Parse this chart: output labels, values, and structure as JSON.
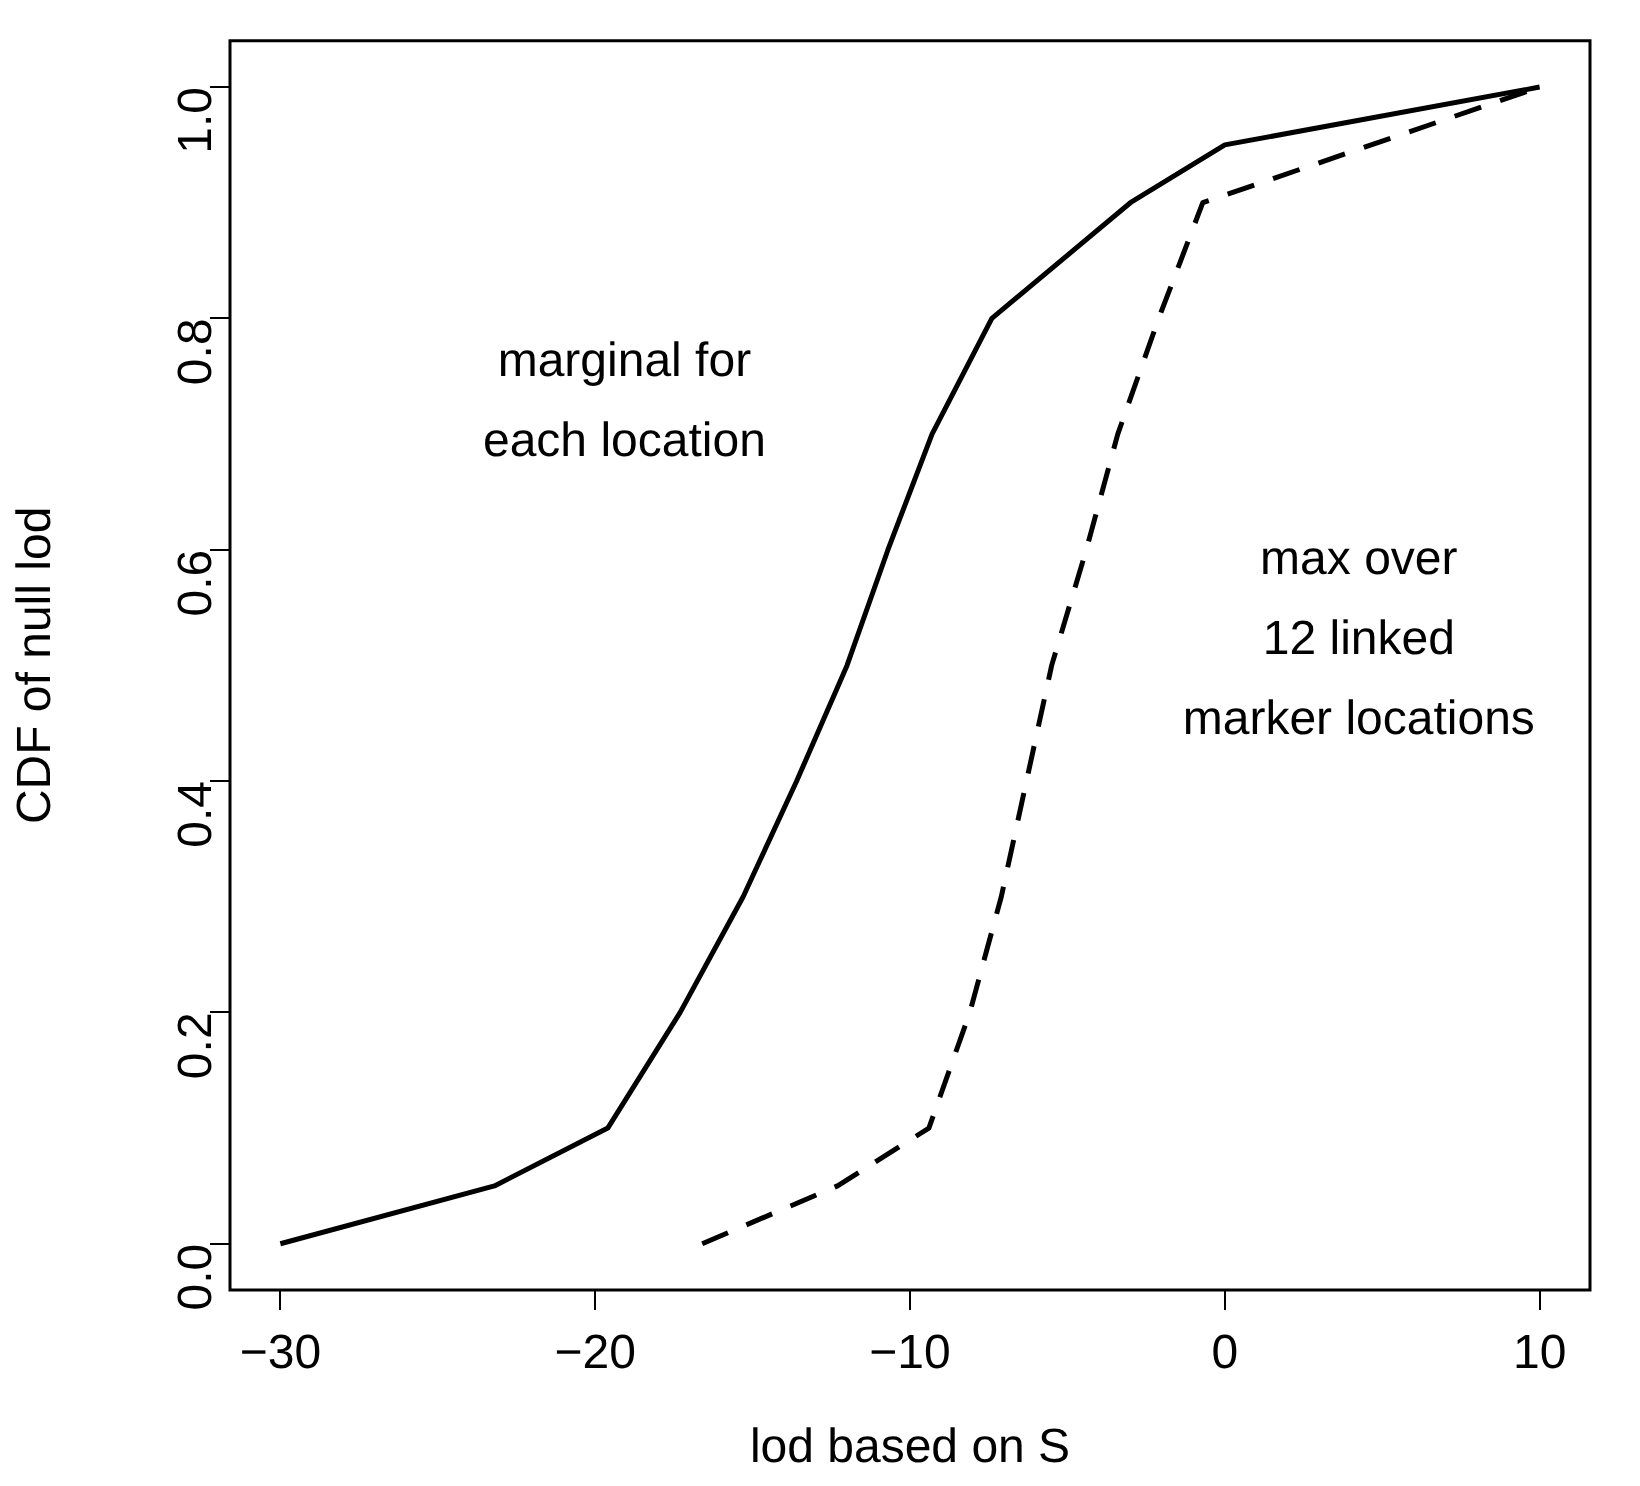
{
  "chart_data": {
    "type": "line",
    "xlabel": "lod based on S",
    "ylabel": "CDF of null lod",
    "xlim": [
      -31.6,
      11.6
    ],
    "xticks": [
      {
        "value": -30,
        "label": "−30"
      },
      {
        "value": -20,
        "label": "−20"
      },
      {
        "value": -10,
        "label": "−10"
      },
      0,
      10
    ],
    "ylim": [
      -0.04,
      1.04
    ],
    "yticks": [
      {
        "value": 0,
        "label": "0.0"
      },
      0.2,
      0.4,
      0.6,
      0.8,
      {
        "value": 1,
        "label": "1.0"
      }
    ],
    "grid": false,
    "legend": false,
    "marker": "none",
    "series": [
      {
        "color": "#000000",
        "line_style": "solid",
        "x": [
          -30,
          -23.2,
          -19.6,
          -17.3,
          -15.3,
          -13.6,
          -12,
          -10.7,
          -9.3,
          -7.4,
          -3,
          0,
          10
        ],
        "values": [
          0,
          0.05,
          0.1,
          0.2,
          0.3,
          0.4,
          0.5,
          0.6,
          0.7,
          0.8,
          0.9,
          0.95,
          1
        ]
      },
      {
        "color": "#000000",
        "line_style": "dashed",
        "x": [
          -16.6,
          -12.3,
          -9.4,
          -8.1,
          -7.1,
          -6.3,
          -5.5,
          -4.4,
          -3.4,
          -2.1,
          -0.7,
          10
        ],
        "values": [
          0,
          0.05,
          0.1,
          0.2,
          0.3,
          0.4,
          0.5,
          0.6,
          0.7,
          0.8,
          0.9,
          1
        ]
      }
    ],
    "annotations": [
      "marginal for\neach location",
      "max over\n12 linked\nmarker locations"
    ]
  }
}
